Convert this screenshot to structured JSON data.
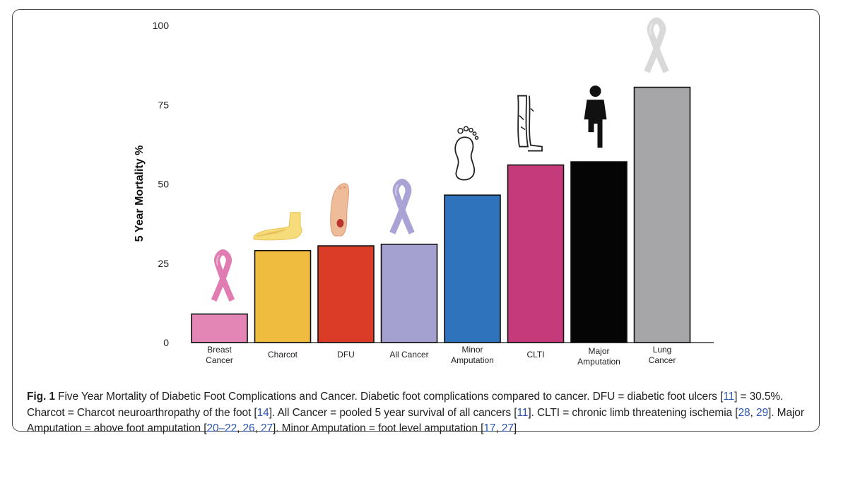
{
  "chart_data": {
    "type": "bar",
    "ylabel": "5 Year Mortality %",
    "ylim": [
      0,
      100
    ],
    "yticks": [
      "0",
      "25",
      "50",
      "75",
      "100"
    ],
    "categories": [
      [
        "Breast",
        "Cancer"
      ],
      [
        "Charcot"
      ],
      [
        "DFU"
      ],
      [
        "All Cancer"
      ],
      [
        "Minor",
        "Amputation"
      ],
      [
        "CLTI"
      ],
      [
        "Major",
        "Amputation"
      ],
      [
        "Lung",
        "Cancer"
      ]
    ],
    "values": [
      9,
      29,
      30.5,
      31,
      46.5,
      56,
      57,
      80.5
    ],
    "colors": [
      "#e385b5",
      "#efbc40",
      "#db3c27",
      "#a4a0cf",
      "#2e73bb",
      "#c43a7a",
      "#050505",
      "#a6a6a8"
    ],
    "icons": [
      "pink-ribbon-icon",
      "foot-bones-icon",
      "foot-ulcer-icon",
      "lavender-ribbon-icon",
      "footprint-icon",
      "legs-icon",
      "amputee-person-icon",
      "grey-ribbon-icon"
    ]
  },
  "caption": {
    "label": "Fig. 1",
    "parts": [
      {
        "t": " Five Year Mortality of Diabetic Foot Complications and Cancer. Diabetic foot complications compared to cancer. DFU = diabetic foot ulcers "
      },
      {
        "t": "[",
        "r": false
      },
      {
        "t": "11",
        "r": true
      },
      {
        "t": "] = 30.5%. Charcot = Charcot neuroarthropathy of the foot [",
        "r": false
      },
      {
        "t": "14",
        "r": true
      },
      {
        "t": "]. All Cancer = pooled 5 year survival of all cancers [",
        "r": false
      },
      {
        "t": "11",
        "r": true
      },
      {
        "t": "]. CLTI = chronic limb threatening ischemia [",
        "r": false
      },
      {
        "t": "28",
        "r": true
      },
      {
        "t": ", ",
        "r": false
      },
      {
        "t": "29",
        "r": true
      },
      {
        "t": "]. Major Amputation = above foot amputation [",
        "r": false
      },
      {
        "t": "20–22",
        "r": true
      },
      {
        "t": ", ",
        "r": false
      },
      {
        "t": "26",
        "r": true
      },
      {
        "t": ", ",
        "r": false
      },
      {
        "t": "27",
        "r": true
      },
      {
        "t": "]. Minor Amputation = foot level amputation [",
        "r": false
      },
      {
        "t": "17",
        "r": true
      },
      {
        "t": ", ",
        "r": false
      },
      {
        "t": "27",
        "r": true
      },
      {
        "t": "]",
        "r": false
      }
    ]
  }
}
